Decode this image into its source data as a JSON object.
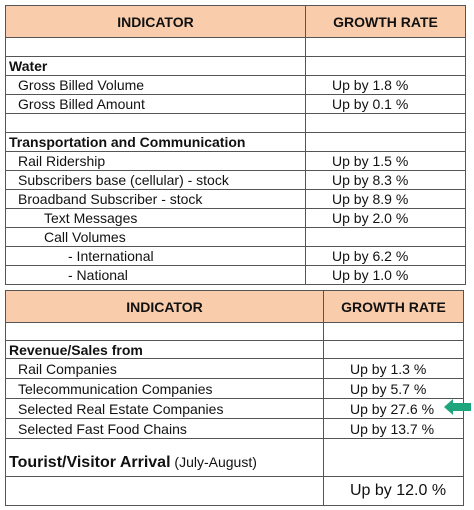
{
  "tables": [
    {
      "header": [
        "INDICATOR",
        "GROWTH RATE"
      ],
      "rows": [
        {
          "indicator": "Water"
        },
        {
          "indicator": "Gross Billed Volume",
          "growth_rate": "Up by 1.8 %"
        },
        {
          "indicator": "Gross Billed Amount",
          "growth_rate": "Up by 0.1 %"
        },
        {
          "indicator": "Transportation and Communication"
        },
        {
          "indicator": "Rail Ridership",
          "growth_rate": "Up by 1.5 %"
        },
        {
          "indicator": "Subscribers base (cellular) - stock",
          "growth_rate": "Up by 8.3 %"
        },
        {
          "indicator": "Broadband Subscriber - stock",
          "growth_rate": "Up by 8.9 %"
        },
        {
          "indicator": "Text Messages",
          "growth_rate": "Up by 2.0 %"
        },
        {
          "indicator": "Call Volumes"
        },
        {
          "indicator": "- International",
          "growth_rate": "Up by 6.2 %"
        },
        {
          "indicator": "- National",
          "growth_rate": "Up by 1.0 %"
        }
      ]
    },
    {
      "header": [
        "INDICATOR",
        "GROWTH RATE"
      ],
      "rows": [
        {
          "indicator": "Revenue/Sales from"
        },
        {
          "indicator": "Rail Companies",
          "growth_rate": "Up by 1.3 %"
        },
        {
          "indicator": "Telecommunication Companies",
          "growth_rate": "Up by 5.7 %"
        },
        {
          "indicator": "Selected Real Estate Companies",
          "growth_rate": "Up by 27.6 %"
        },
        {
          "indicator": "Selected Fast Food Chains",
          "growth_rate": "Up by 13.7 %"
        },
        {
          "indicator": "Tourist/Visitor Arrival",
          "period": "(July-August)"
        },
        {
          "growth_rate": "Up by 12.0 %"
        }
      ]
    }
  ]
}
